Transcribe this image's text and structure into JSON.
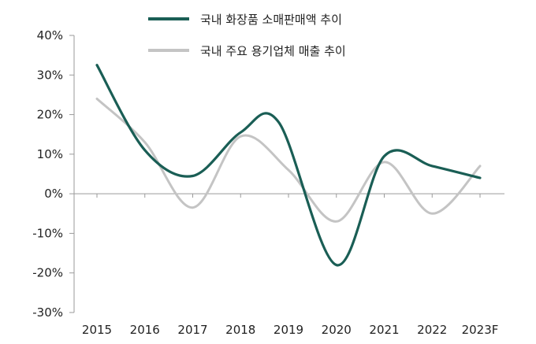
{
  "chart_data": {
    "type": "line",
    "title": "",
    "xlabel": "",
    "ylabel": "",
    "categories": [
      "2015",
      "2016",
      "2017",
      "2018",
      "2019",
      "2020",
      "2021",
      "2022",
      "2023F"
    ],
    "y_tick_labels": [
      "40%",
      "30%",
      "20%",
      "10%",
      "0%",
      "-10%",
      "-20%",
      "-30%"
    ],
    "ylim": [
      -30,
      40
    ],
    "grid": false,
    "legend": "top",
    "series": [
      {
        "name": "국내 화장품 소매판매액 추이",
        "color": "#1a5e55",
        "points": [
          [
            2015,
            32.5
          ],
          [
            2016,
            11
          ],
          [
            2017,
            4.5
          ],
          [
            2018,
            15.5
          ],
          [
            2018.8,
            18
          ],
          [
            2020,
            -18
          ],
          [
            2021,
            9.5
          ],
          [
            2022,
            7
          ],
          [
            2023,
            4
          ]
        ]
      },
      {
        "name": "국내 주요 용기업체 매출 추이",
        "color": "#c4c4c4",
        "points": [
          [
            2015,
            24
          ],
          [
            2016,
            13
          ],
          [
            2017,
            -3.5
          ],
          [
            2018,
            14.5
          ],
          [
            2019,
            6
          ],
          [
            2020,
            -7
          ],
          [
            2021,
            8
          ],
          [
            2022,
            -5
          ],
          [
            2023,
            7
          ]
        ]
      }
    ]
  }
}
